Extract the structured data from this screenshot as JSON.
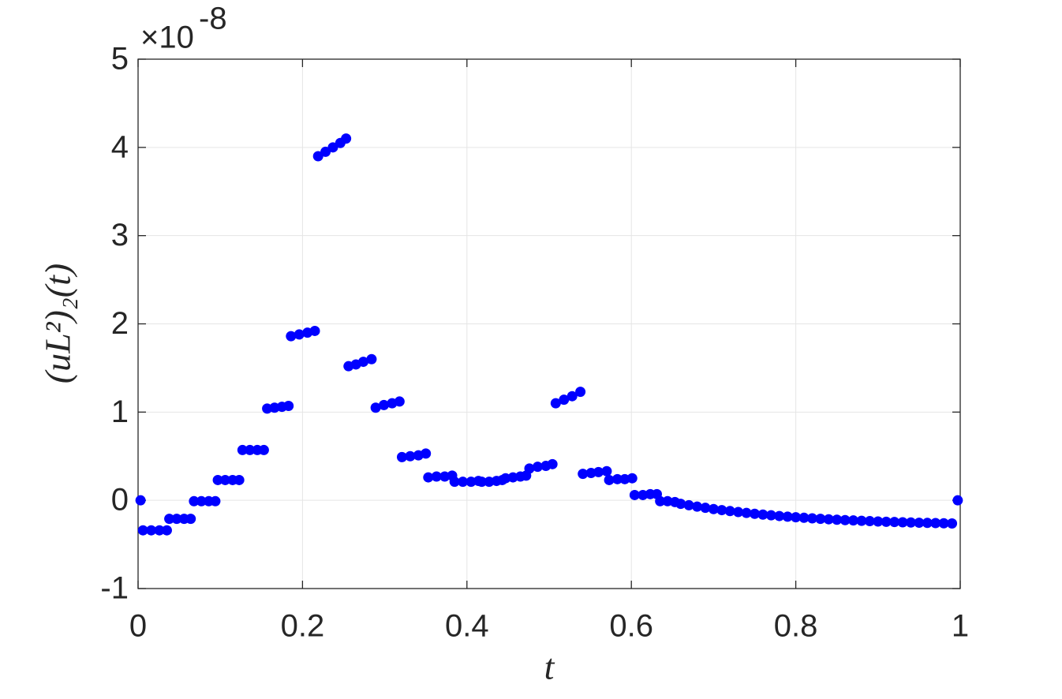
{
  "chart_data": {
    "type": "scatter",
    "x_label": "t",
    "y_label": "(uL²)₂(t)",
    "y_multiplier": "×10",
    "y_exponent": "-8",
    "x": [
      0.003,
      0.006,
      0.016,
      0.026,
      0.035,
      0.038,
      0.047,
      0.056,
      0.064,
      0.068,
      0.077,
      0.086,
      0.094,
      0.097,
      0.106,
      0.115,
      0.123,
      0.127,
      0.136,
      0.145,
      0.153,
      0.157,
      0.166,
      0.175,
      0.183,
      0.186,
      0.196,
      0.206,
      0.215,
      0.219,
      0.228,
      0.237,
      0.246,
      0.253,
      0.256,
      0.265,
      0.274,
      0.284,
      0.289,
      0.299,
      0.309,
      0.318,
      0.321,
      0.331,
      0.341,
      0.35,
      0.353,
      0.363,
      0.373,
      0.382,
      0.385,
      0.395,
      0.405,
      0.414,
      0.418,
      0.427,
      0.436,
      0.443,
      0.447,
      0.456,
      0.465,
      0.472,
      0.476,
      0.486,
      0.496,
      0.504,
      0.508,
      0.518,
      0.528,
      0.538,
      0.541,
      0.551,
      0.56,
      0.57,
      0.573,
      0.583,
      0.592,
      0.601,
      0.604,
      0.614,
      0.623,
      0.631,
      0.635,
      0.644,
      0.653,
      0.66,
      0.67,
      0.68,
      0.69,
      0.7,
      0.71,
      0.72,
      0.73,
      0.74,
      0.75,
      0.76,
      0.77,
      0.78,
      0.79,
      0.8,
      0.81,
      0.82,
      0.83,
      0.84,
      0.85,
      0.86,
      0.87,
      0.88,
      0.89,
      0.9,
      0.91,
      0.92,
      0.93,
      0.94,
      0.95,
      0.96,
      0.97,
      0.98,
      0.99,
      0.997
    ],
    "values": [
      0,
      -0.34,
      -0.34,
      -0.34,
      -0.34,
      -0.21,
      -0.21,
      -0.21,
      -0.21,
      -0.01,
      -0.01,
      -0.01,
      -0.01,
      0.23,
      0.23,
      0.23,
      0.23,
      0.57,
      0.57,
      0.57,
      0.57,
      1.04,
      1.05,
      1.06,
      1.07,
      1.86,
      1.88,
      1.9,
      1.92,
      3.9,
      3.95,
      4.0,
      4.05,
      4.1,
      1.52,
      1.54,
      1.57,
      1.6,
      1.05,
      1.08,
      1.1,
      1.12,
      0.49,
      0.5,
      0.51,
      0.53,
      0.26,
      0.27,
      0.27,
      0.28,
      0.21,
      0.21,
      0.21,
      0.22,
      0.21,
      0.21,
      0.22,
      0.23,
      0.25,
      0.26,
      0.27,
      0.28,
      0.36,
      0.38,
      0.39,
      0.41,
      1.1,
      1.14,
      1.18,
      1.23,
      0.3,
      0.31,
      0.32,
      0.33,
      0.23,
      0.24,
      0.24,
      0.25,
      0.06,
      0.06,
      0.07,
      0.07,
      -0.01,
      -0.01,
      -0.02,
      -0.04,
      -0.056,
      -0.071,
      -0.085,
      -0.099,
      -0.111,
      -0.122,
      -0.133,
      -0.143,
      -0.153,
      -0.162,
      -0.17,
      -0.178,
      -0.185,
      -0.192,
      -0.198,
      -0.204,
      -0.21,
      -0.215,
      -0.22,
      -0.224,
      -0.228,
      -0.232,
      -0.236,
      -0.24,
      -0.243,
      -0.246,
      -0.249,
      -0.251,
      -0.254,
      -0.256,
      -0.258,
      -0.26,
      -0.262,
      0
    ],
    "color": "#0000ff",
    "xlim": [
      0,
      1
    ],
    "xticks": [
      0,
      {
        "value": 0.2,
        "label": "0.2"
      },
      {
        "value": 0.4,
        "label": "0.4"
      },
      {
        "value": 0.6,
        "label": "0.6"
      },
      {
        "value": 0.8,
        "label": "0.8"
      },
      1
    ],
    "ylim": [
      -1,
      5
    ],
    "yticks": [
      -1,
      0,
      1,
      2,
      3,
      4,
      5
    ],
    "grid": true
  }
}
